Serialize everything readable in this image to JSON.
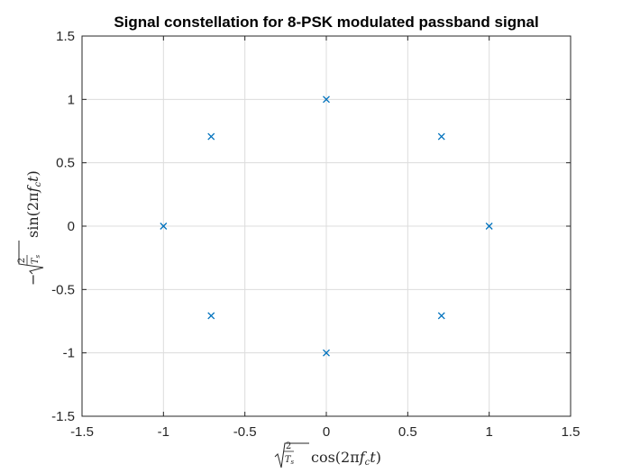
{
  "chart_data": {
    "type": "scatter",
    "title": "Signal constellation for 8-PSK modulated passband signal",
    "xlabel": "√(2/Ts) cos(2πfct)",
    "ylabel": "−√(2/Ts) sin(2πfct)",
    "xlim": [
      -1.5,
      1.5
    ],
    "ylim": [
      -1.5,
      1.5
    ],
    "xticks": [
      "-1.5",
      "-1",
      "-0.5",
      "0",
      "0.5",
      "1",
      "1.5"
    ],
    "yticks": [
      "-1.5",
      "-1",
      "-0.5",
      "0",
      "0.5",
      "1",
      "1.5"
    ],
    "grid": true,
    "marker": "x",
    "color": "#0072BD",
    "points": [
      {
        "x": 1,
        "y": 0
      },
      {
        "x": 0.7071,
        "y": 0.7071
      },
      {
        "x": 0,
        "y": 1
      },
      {
        "x": -0.7071,
        "y": 0.7071
      },
      {
        "x": -1,
        "y": 0
      },
      {
        "x": -0.7071,
        "y": -0.7071
      },
      {
        "x": 0,
        "y": -1
      },
      {
        "x": 0.7071,
        "y": -0.7071
      }
    ]
  }
}
